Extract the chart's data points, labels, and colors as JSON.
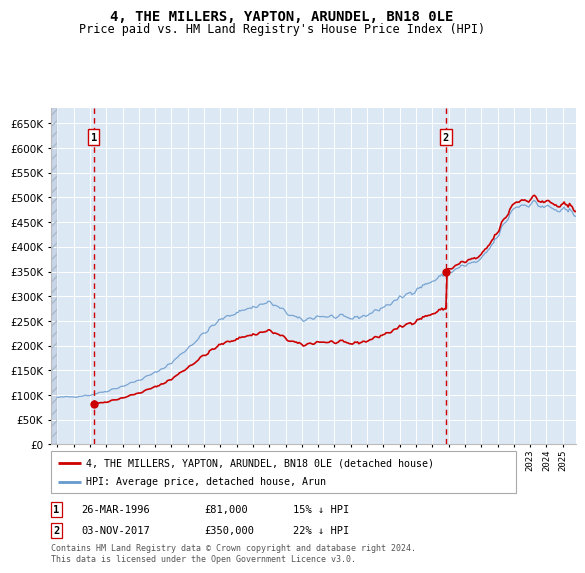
{
  "title": "4, THE MILLERS, YAPTON, ARUNDEL, BN18 0LE",
  "subtitle": "Price paid vs. HM Land Registry's House Price Index (HPI)",
  "hpi_label": "HPI: Average price, detached house, Arun",
  "property_label": "4, THE MILLERS, YAPTON, ARUNDEL, BN18 0LE (detached house)",
  "footnote": "Contains HM Land Registry data © Crown copyright and database right 2024.\nThis data is licensed under the Open Government Licence v3.0.",
  "marker1": {
    "label": "1",
    "date_str": "26-MAR-1996",
    "price_str": "£81,000",
    "note": "15% ↓ HPI"
  },
  "marker2": {
    "label": "2",
    "date_str": "03-NOV-2017",
    "price_str": "£350,000",
    "note": "22% ↓ HPI"
  },
  "hpi_color": "#6699cc",
  "price_color": "#cc0000",
  "marker_color": "#cc0000",
  "dashed_color": "#cc0000",
  "box_color": "#cc0000",
  "background_plot": "#dde8f5",
  "ylim": [
    0,
    680000
  ],
  "yticks": [
    0,
    50000,
    100000,
    150000,
    200000,
    250000,
    300000,
    350000,
    400000,
    450000,
    500000,
    550000,
    600000,
    650000
  ],
  "purchase1_year": 1996.23,
  "purchase1_price": 81000,
  "purchase2_year": 2017.84,
  "purchase2_price": 350000
}
